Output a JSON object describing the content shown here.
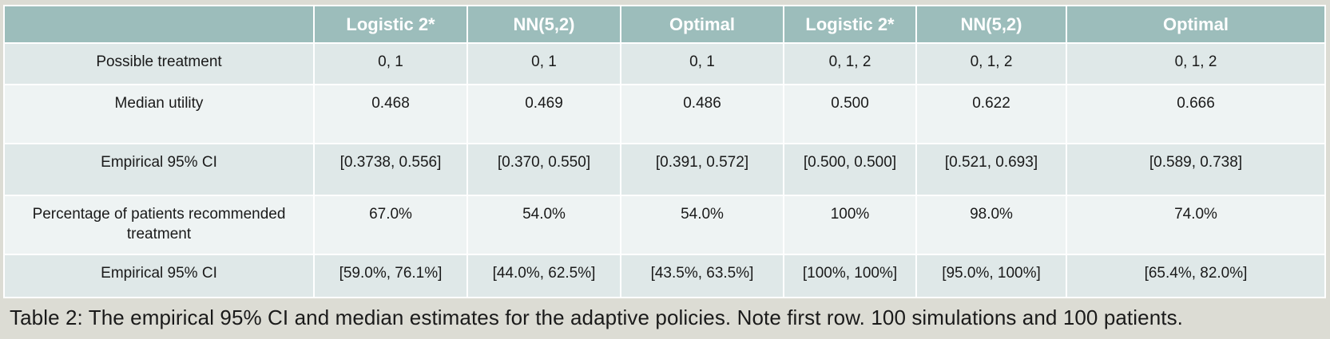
{
  "table": {
    "headers": [
      "",
      "Logistic 2*",
      "NN(5,2)",
      "Optimal",
      "Logistic 2*",
      "NN(5,2)",
      "Optimal"
    ],
    "rows": [
      {
        "label": "Possible treatment",
        "cells": [
          "0, 1",
          "0, 1",
          "0, 1",
          "0, 1, 2",
          "0, 1, 2",
          "0, 1, 2"
        ]
      },
      {
        "label": "Median utility",
        "cells": [
          "0.468",
          "0.469",
          "0.486",
          "0.500",
          "0.622",
          "0.666"
        ]
      },
      {
        "label": "Empirical 95% CI",
        "cells": [
          "[0.3738, 0.556]",
          "[0.370, 0.550]",
          "[0.391, 0.572]",
          "[0.500, 0.500]",
          "[0.521, 0.693]",
          "[0.589, 0.738]"
        ]
      },
      {
        "label": "Percentage of patients recommended treatment",
        "cells": [
          "67.0%",
          "54.0%",
          "54.0%",
          "100%",
          "98.0%",
          "74.0%"
        ]
      },
      {
        "label": "Empirical 95% CI",
        "cells": [
          "[59.0%, 76.1%]",
          "[44.0%, 62.5%]",
          "[43.5%, 63.5%]",
          "[100%, 100%]",
          "[95.0%, 100%]",
          "[65.4%, 82.0%]"
        ]
      }
    ]
  },
  "caption": "Table 2: The empirical 95% CI and median estimates for the adaptive policies.  Note first row. 100 simulations and 100 patients.",
  "colors": {
    "header_bg": "#9cbdbb",
    "row_dark": "#dfe8e8",
    "row_light": "#eef3f3",
    "page_bg": "#dcdcd4"
  }
}
